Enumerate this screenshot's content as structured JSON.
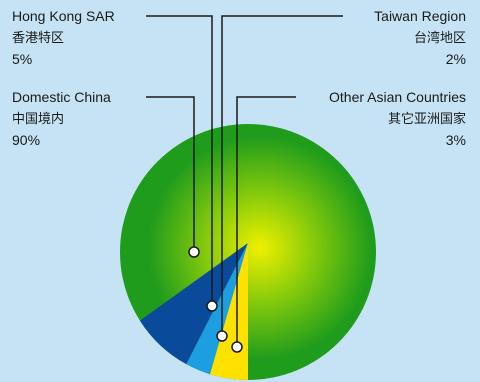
{
  "chart_data": {
    "type": "pie",
    "title": "",
    "colors": {
      "background": "#c5e3f5",
      "disc_edge": "#1f9c1c",
      "disc_center": "#f0f000",
      "leader_line": "#1a1a1a"
    },
    "slices": [
      {
        "key": "domestic",
        "label_en": "Domestic China",
        "label_zh": "中国境内",
        "percent_text": "90%",
        "value": 90,
        "color": "#2ba01e"
      },
      {
        "key": "hongkong",
        "label_en": "Hong Kong SAR",
        "label_zh": "香港特区",
        "percent_text": "5%",
        "value": 5,
        "color": "#0a4a9a"
      },
      {
        "key": "taiwan",
        "label_en": "Taiwan Region",
        "label_zh": "台湾地区",
        "percent_text": "2%",
        "value": 2,
        "color": "#1c9ee0"
      },
      {
        "key": "other",
        "label_en": "Other Asian Countries",
        "label_zh": "其它亚洲国家",
        "percent_text": "3%",
        "value": 3,
        "color": "#ffe100"
      }
    ]
  }
}
